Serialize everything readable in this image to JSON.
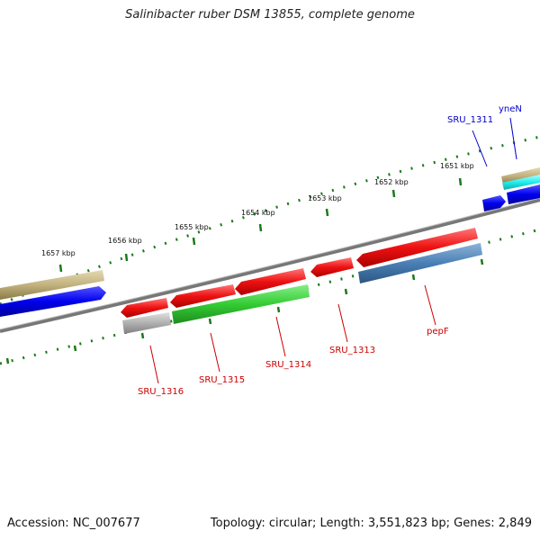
{
  "title": "Salinibacter ruber DSM 13855, complete genome",
  "footer": {
    "accession": "Accession: NC_007677",
    "summary": "Topology: circular; Length: 3,551,823 bp; Genes: 2,849"
  },
  "scale_labels": [
    "1651 kbp",
    "1652 kbp",
    "1653 kbp",
    "1654 kbp",
    "1655 kbp",
    "1656 kbp",
    "1657 kbp"
  ],
  "genes": [
    {
      "name": "SRU_1311",
      "strand": "forward",
      "color": "#0000cc"
    },
    {
      "name": "yneN",
      "strand": "forward",
      "color": "#0000cc"
    },
    {
      "name": "pepF",
      "strand": "reverse",
      "color": "#cc0000"
    },
    {
      "name": "SRU_1313",
      "strand": "reverse",
      "color": "#cc0000"
    },
    {
      "name": "SRU_1314",
      "strand": "reverse",
      "color": "#cc0000"
    },
    {
      "name": "SRU_1315",
      "strand": "reverse",
      "color": "#cc0000"
    },
    {
      "name": "SRU_1316",
      "strand": "reverse",
      "color": "#cc0000"
    }
  ],
  "colors": {
    "cds_reverse": "#ee1111",
    "cds_forward": "#1111dd",
    "blast_hit_green": "#33cc33",
    "blast_hit_steel": "#4a7fb5",
    "blast_hit_gray": "#b0b0b0",
    "blast_hit_khaki": "#c2b280",
    "blast_hit_cyan": "#22eeee",
    "backbone": "#777777",
    "ticks": "#1a7a1a"
  }
}
